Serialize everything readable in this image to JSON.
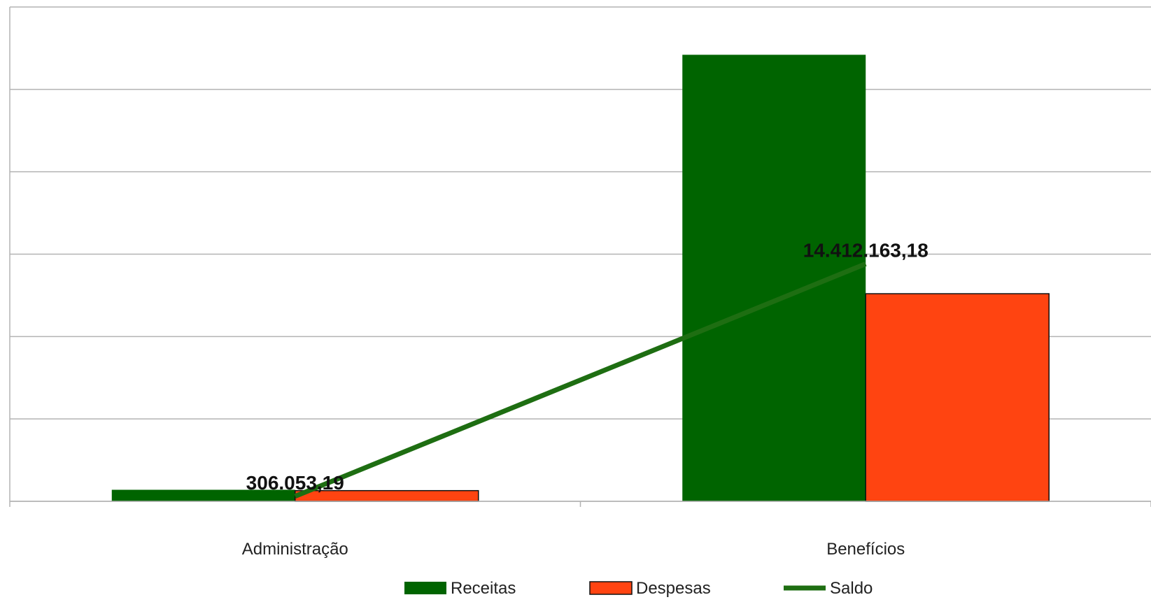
{
  "chart_data": {
    "type": "bar",
    "categories": [
      "Administração",
      "Benefícios"
    ],
    "series": [
      {
        "name": "Receitas",
        "kind": "bar",
        "values": [
          700000,
          27100000
        ],
        "color": "#006400"
      },
      {
        "name": "Despesas",
        "kind": "bar",
        "values": [
          650000,
          12600000
        ],
        "color": "#FF4411"
      },
      {
        "name": "Saldo",
        "kind": "line",
        "values": [
          306053.19,
          14412163.18
        ],
        "color": "#1E6E12"
      }
    ],
    "data_labels": [
      "306.053,19",
      "14.412.163,18"
    ],
    "title": "",
    "xlabel": "",
    "ylabel": "",
    "ylim": [
      0,
      30000000
    ],
    "y_gridlines": [
      0,
      5000000,
      10000000,
      15000000,
      20000000,
      25000000,
      30000000
    ],
    "y_tick_labels_visible": false,
    "grid": true,
    "legend_position": "bottom"
  }
}
